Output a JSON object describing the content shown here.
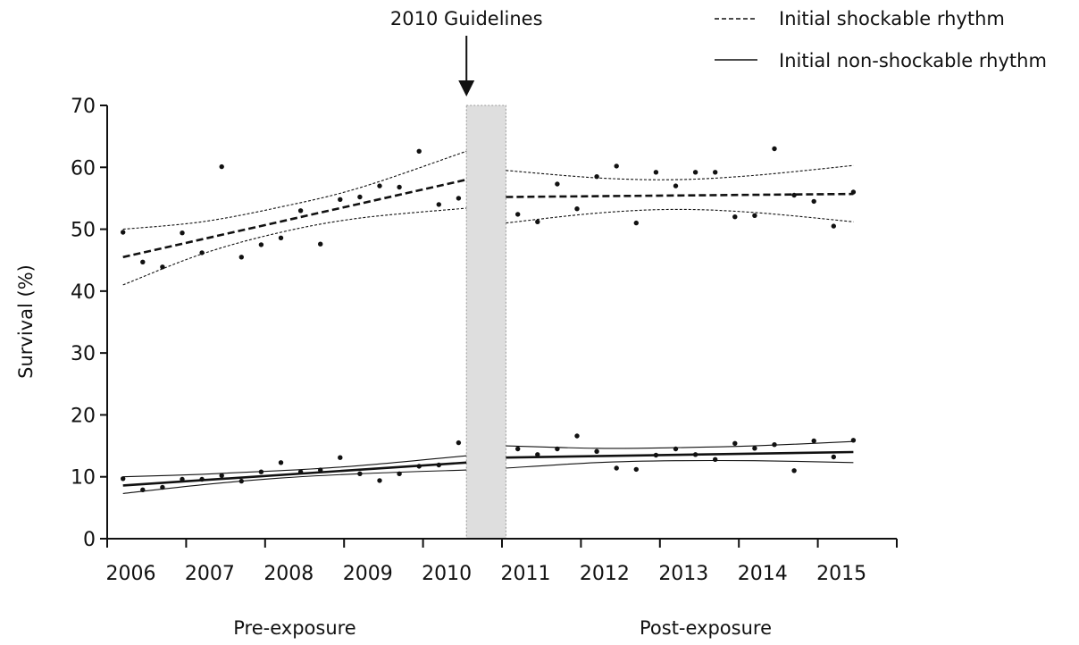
{
  "chart_data": {
    "type": "scatter",
    "title": "",
    "xlabel": "",
    "ylabel": "Survival (%)",
    "ylim": [
      0,
      70
    ],
    "yticks": [
      0,
      10,
      20,
      30,
      40,
      50,
      60,
      70
    ],
    "xlim": [
      2005.8,
      2015.8
    ],
    "xtick_labels": [
      "2006",
      "2007",
      "2008",
      "2009",
      "2010",
      "2011",
      "2012",
      "2013",
      "2014",
      "2015"
    ],
    "grid": false,
    "legend": "top-right",
    "period_labels": {
      "pre": "Pre-exposure",
      "post": "Post-exposure"
    },
    "exposure_band": [
      2010.35,
      2010.85
    ],
    "annotation": {
      "label": "2010 Guidelines",
      "x": 2010.35
    },
    "colors": {
      "marks": "#111111",
      "band": "#dedede"
    },
    "series": [
      {
        "name": "Initial shockable rhythm",
        "style": "dashed",
        "points": [
          [
            2006.0,
            49.5
          ],
          [
            2006.25,
            44.7
          ],
          [
            2006.5,
            43.9
          ],
          [
            2006.75,
            49.4
          ],
          [
            2007.0,
            46.2
          ],
          [
            2007.25,
            60.1
          ],
          [
            2007.5,
            45.5
          ],
          [
            2007.75,
            47.5
          ],
          [
            2008.0,
            48.6
          ],
          [
            2008.25,
            53.0
          ],
          [
            2008.5,
            47.6
          ],
          [
            2008.75,
            54.8
          ],
          [
            2009.0,
            55.2
          ],
          [
            2009.25,
            57.0
          ],
          [
            2009.5,
            56.8
          ],
          [
            2009.75,
            62.6
          ],
          [
            2010.0,
            54.0
          ],
          [
            2010.25,
            55.0
          ],
          [
            2011.0,
            52.4
          ],
          [
            2011.25,
            51.2
          ],
          [
            2011.5,
            57.3
          ],
          [
            2011.75,
            53.3
          ],
          [
            2012.0,
            58.5
          ],
          [
            2012.25,
            60.2
          ],
          [
            2012.5,
            51.0
          ],
          [
            2012.75,
            59.2
          ],
          [
            2013.0,
            57.0
          ],
          [
            2013.25,
            59.2
          ],
          [
            2013.5,
            59.2
          ],
          [
            2013.75,
            52.0
          ],
          [
            2014.0,
            52.2
          ],
          [
            2014.25,
            63.0
          ],
          [
            2014.5,
            55.5
          ],
          [
            2014.75,
            54.5
          ],
          [
            2015.0,
            50.5
          ],
          [
            2015.25,
            56.0
          ]
        ],
        "fit_pre": {
          "x": [
            2006.0,
            2010.35
          ],
          "y": [
            45.5,
            58.0
          ]
        },
        "ci_pre": {
          "x": [
            2006.0,
            2007.0,
            2008.0,
            2009.0,
            2010.35
          ],
          "upper": [
            50.0,
            51.2,
            53.6,
            56.7,
            62.6
          ],
          "lower": [
            41.0,
            46.0,
            49.5,
            51.8,
            53.4
          ]
        },
        "fit_post": {
          "x": [
            2010.85,
            2015.25
          ],
          "y": [
            55.2,
            55.7
          ]
        },
        "ci_post": {
          "x": [
            2010.85,
            2012.0,
            2013.0,
            2014.0,
            2015.25
          ],
          "upper": [
            59.5,
            58.3,
            58.0,
            58.7,
            60.3
          ],
          "lower": [
            51.0,
            52.6,
            53.2,
            52.7,
            51.2
          ]
        }
      },
      {
        "name": "Initial non-shockable rhythm",
        "style": "solid",
        "points": [
          [
            2006.0,
            9.7
          ],
          [
            2006.25,
            7.9
          ],
          [
            2006.5,
            8.3
          ],
          [
            2006.75,
            9.6
          ],
          [
            2007.0,
            9.6
          ],
          [
            2007.25,
            10.2
          ],
          [
            2007.5,
            9.3
          ],
          [
            2007.75,
            10.8
          ],
          [
            2008.0,
            12.3
          ],
          [
            2008.25,
            10.8
          ],
          [
            2008.5,
            11.1
          ],
          [
            2008.75,
            13.1
          ],
          [
            2009.0,
            10.5
          ],
          [
            2009.25,
            9.4
          ],
          [
            2009.5,
            10.5
          ],
          [
            2009.75,
            11.7
          ],
          [
            2010.0,
            11.9
          ],
          [
            2010.25,
            15.5
          ],
          [
            2011.0,
            14.5
          ],
          [
            2011.25,
            13.6
          ],
          [
            2011.5,
            14.5
          ],
          [
            2011.75,
            16.6
          ],
          [
            2012.0,
            14.1
          ],
          [
            2012.25,
            11.4
          ],
          [
            2012.5,
            11.2
          ],
          [
            2012.75,
            13.5
          ],
          [
            2013.0,
            14.5
          ],
          [
            2013.25,
            13.6
          ],
          [
            2013.5,
            12.8
          ],
          [
            2013.75,
            15.4
          ],
          [
            2014.0,
            14.6
          ],
          [
            2014.25,
            15.2
          ],
          [
            2014.5,
            11.0
          ],
          [
            2014.75,
            15.8
          ],
          [
            2015.0,
            13.2
          ],
          [
            2015.25,
            15.9
          ]
        ],
        "fit_pre": {
          "x": [
            2006.0,
            2010.35
          ],
          "y": [
            8.6,
            12.3
          ]
        },
        "ci_pre": {
          "x": [
            2006.0,
            2007.0,
            2008.0,
            2009.0,
            2010.35
          ],
          "upper": [
            10.0,
            10.4,
            11.0,
            11.8,
            13.4
          ],
          "lower": [
            7.3,
            8.7,
            9.8,
            10.5,
            11.1
          ]
        },
        "fit_post": {
          "x": [
            2010.85,
            2015.25
          ],
          "y": [
            13.1,
            14.0
          ]
        },
        "ci_post": {
          "x": [
            2010.85,
            2012.0,
            2013.0,
            2014.0,
            2015.25
          ],
          "upper": [
            15.0,
            14.6,
            14.7,
            15.0,
            15.7
          ],
          "lower": [
            11.4,
            12.3,
            12.6,
            12.6,
            12.3
          ]
        }
      }
    ]
  }
}
